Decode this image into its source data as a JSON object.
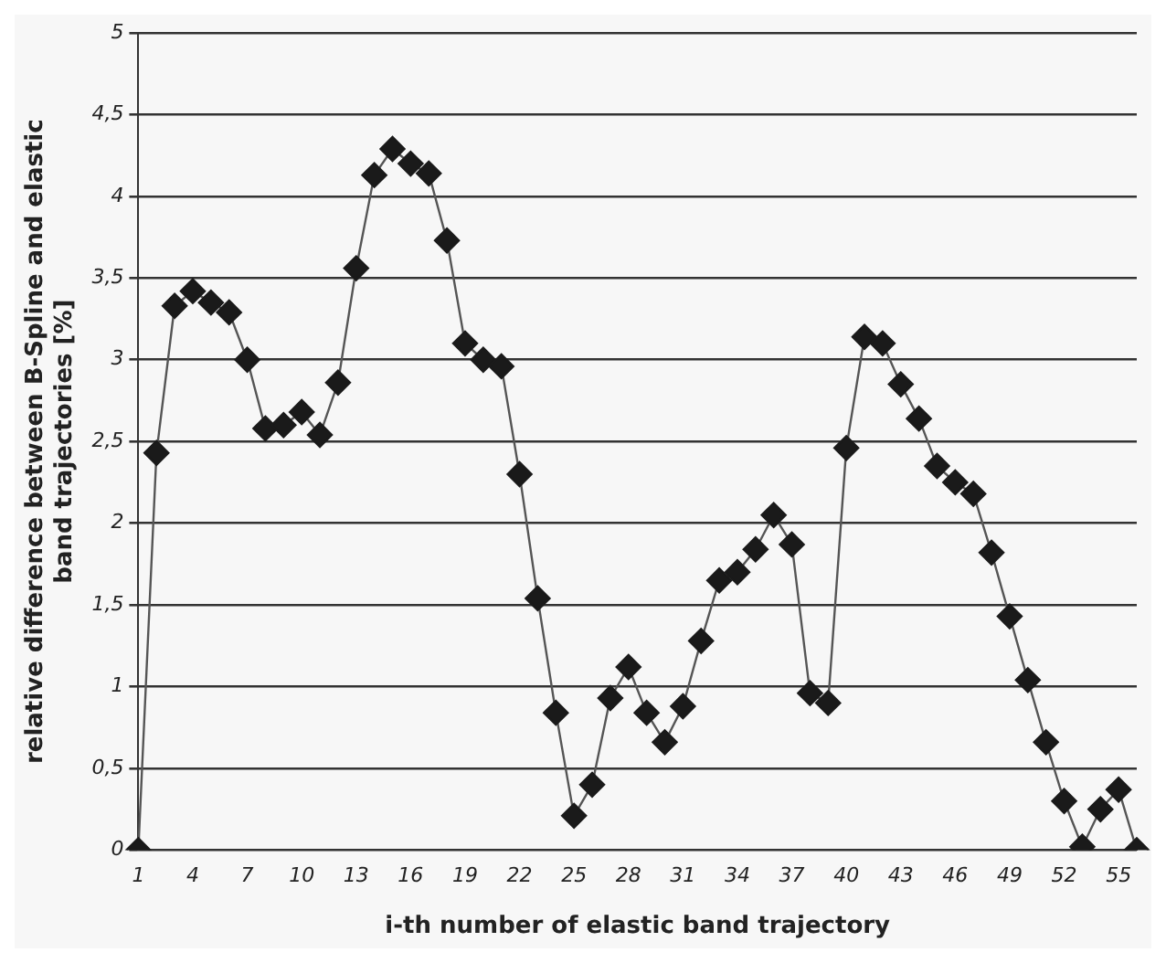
{
  "chart_data": {
    "type": "line",
    "xlabel": "i-th number of elastic band trajectory",
    "ylabel": "relative difference between B-Spline and elastic band trajectories [%]",
    "categories": [
      "1",
      null,
      null,
      "4",
      null,
      null,
      "7",
      null,
      null,
      "10",
      null,
      null,
      "13",
      null,
      null,
      "16",
      null,
      null,
      "19",
      null,
      null,
      "22",
      null,
      null,
      "25",
      null,
      null,
      "28",
      null,
      null,
      "31",
      null,
      null,
      "34",
      null,
      null,
      "37",
      null,
      null,
      "40",
      null,
      null,
      "43",
      null,
      null,
      "46",
      null,
      null,
      "49",
      null,
      null,
      "52",
      null,
      null,
      "55",
      null
    ],
    "series": [
      {
        "color": "#1a1a1a",
        "values": [
          0,
          2.43,
          3.33,
          3.42,
          3.35,
          3.29,
          3.0,
          2.58,
          2.6,
          2.68,
          2.54,
          2.86,
          3.56,
          4.13,
          4.29,
          4.2,
          4.14,
          3.73,
          3.1,
          3.0,
          2.96,
          2.3,
          1.54,
          0.84,
          0.21,
          0.4,
          0.93,
          1.12,
          0.84,
          0.66,
          0.88,
          1.28,
          1.65,
          1.7,
          1.84,
          2.05,
          1.87,
          0.96,
          0.9,
          2.46,
          3.14,
          3.1,
          2.85,
          2.64,
          2.35,
          2.25,
          2.18,
          1.82,
          1.43,
          1.04,
          0.66,
          0.3,
          0.02,
          0.25,
          0.37,
          0
        ]
      }
    ],
    "ylim": [
      0,
      5
    ],
    "yticks": [
      0,
      {
        "value": 0.5,
        "label": "0,5"
      },
      1,
      {
        "value": 1.5,
        "label": "1,5"
      },
      2,
      {
        "value": 2.5,
        "label": "2,5"
      },
      3,
      {
        "value": 3.5,
        "label": "3,5"
      },
      4,
      {
        "value": 4.5,
        "label": "4,5"
      },
      5
    ],
    "grid": "y",
    "legend": false,
    "marker": "diamond",
    "line_style": "solid"
  }
}
